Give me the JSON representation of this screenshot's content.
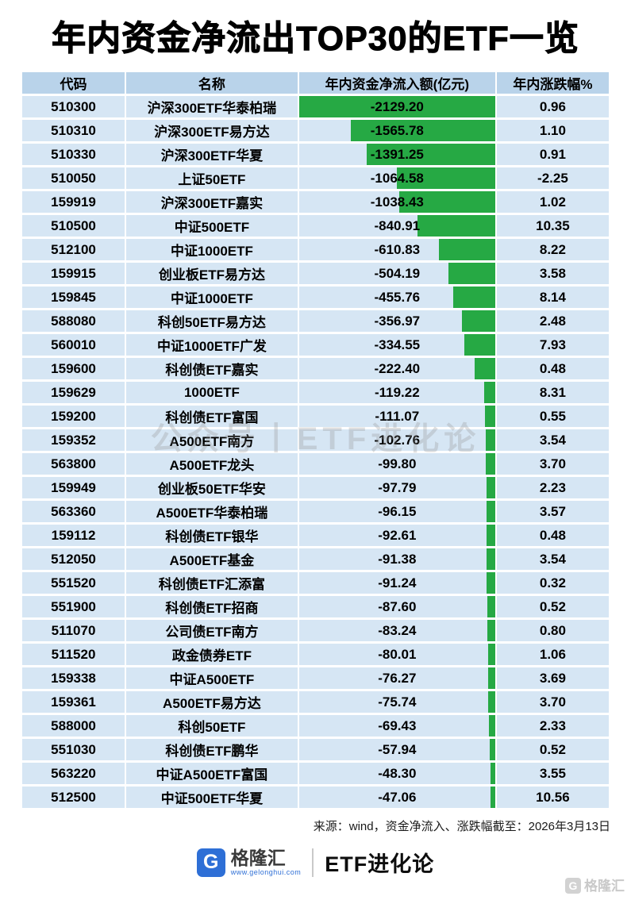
{
  "title": "年内资金净流出TOP30的ETF一览",
  "watermark": "公众号丨ETF进化论",
  "chart_data": {
    "type": "table",
    "title": "年内资金净流出TOP30的ETF一览",
    "columns": [
      "代码",
      "名称",
      "年内资金净流入额(亿元)",
      "年内涨跌幅%"
    ],
    "bar": {
      "column": "年内资金净流入额(亿元)",
      "color": "#26a944",
      "anchor": "right",
      "max_abs": 2129.2
    },
    "rows": [
      {
        "code": "510300",
        "name": "沪深300ETF华泰柏瑞",
        "net_flow": -2129.2,
        "ytd_change": 0.96
      },
      {
        "code": "510310",
        "name": "沪深300ETF易方达",
        "net_flow": -1565.78,
        "ytd_change": 1.1
      },
      {
        "code": "510330",
        "name": "沪深300ETF华夏",
        "net_flow": -1391.25,
        "ytd_change": 0.91
      },
      {
        "code": "510050",
        "name": "上证50ETF",
        "net_flow": -1064.58,
        "ytd_change": -2.25
      },
      {
        "code": "159919",
        "name": "沪深300ETF嘉实",
        "net_flow": -1038.43,
        "ytd_change": 1.02
      },
      {
        "code": "510500",
        "name": "中证500ETF",
        "net_flow": -840.91,
        "ytd_change": 10.35
      },
      {
        "code": "512100",
        "name": "中证1000ETF",
        "net_flow": -610.83,
        "ytd_change": 8.22
      },
      {
        "code": "159915",
        "name": "创业板ETF易方达",
        "net_flow": -504.19,
        "ytd_change": 3.58
      },
      {
        "code": "159845",
        "name": "中证1000ETF",
        "net_flow": -455.76,
        "ytd_change": 8.14
      },
      {
        "code": "588080",
        "name": "科创50ETF易方达",
        "net_flow": -356.97,
        "ytd_change": 2.48
      },
      {
        "code": "560010",
        "name": "中证1000ETF广发",
        "net_flow": -334.55,
        "ytd_change": 7.93
      },
      {
        "code": "159600",
        "name": "科创债ETF嘉实",
        "net_flow": -222.4,
        "ytd_change": 0.48
      },
      {
        "code": "159629",
        "name": "1000ETF",
        "net_flow": -119.22,
        "ytd_change": 8.31
      },
      {
        "code": "159200",
        "name": "科创债ETF富国",
        "net_flow": -111.07,
        "ytd_change": 0.55
      },
      {
        "code": "159352",
        "name": "A500ETF南方",
        "net_flow": -102.76,
        "ytd_change": 3.54
      },
      {
        "code": "563800",
        "name": "A500ETF龙头",
        "net_flow": -99.8,
        "ytd_change": 3.7
      },
      {
        "code": "159949",
        "name": "创业板50ETF华安",
        "net_flow": -97.79,
        "ytd_change": 2.23
      },
      {
        "code": "563360",
        "name": "A500ETF华泰柏瑞",
        "net_flow": -96.15,
        "ytd_change": 3.57
      },
      {
        "code": "159112",
        "name": "科创债ETF银华",
        "net_flow": -92.61,
        "ytd_change": 0.48
      },
      {
        "code": "512050",
        "name": "A500ETF基金",
        "net_flow": -91.38,
        "ytd_change": 3.54
      },
      {
        "code": "551520",
        "name": "科创债ETF汇添富",
        "net_flow": -91.24,
        "ytd_change": 0.32
      },
      {
        "code": "551900",
        "name": "科创债ETF招商",
        "net_flow": -87.6,
        "ytd_change": 0.52
      },
      {
        "code": "511070",
        "name": "公司债ETF南方",
        "net_flow": -83.24,
        "ytd_change": 0.8
      },
      {
        "code": "511520",
        "name": "政金债券ETF",
        "net_flow": -80.01,
        "ytd_change": 1.06
      },
      {
        "code": "159338",
        "name": "中证A500ETF",
        "net_flow": -76.27,
        "ytd_change": 3.69
      },
      {
        "code": "159361",
        "name": "A500ETF易方达",
        "net_flow": -75.74,
        "ytd_change": 3.7
      },
      {
        "code": "588000",
        "name": "科创50ETF",
        "net_flow": -69.43,
        "ytd_change": 2.33
      },
      {
        "code": "551030",
        "name": "科创债ETF鹏华",
        "net_flow": -57.94,
        "ytd_change": 0.52
      },
      {
        "code": "563220",
        "name": "中证A500ETF富国",
        "net_flow": -48.3,
        "ytd_change": 3.55
      },
      {
        "code": "512500",
        "name": "中证500ETF华夏",
        "net_flow": -47.06,
        "ytd_change": 10.56
      }
    ]
  },
  "footer": {
    "source": "来源：wind，资金净流入、涨跌幅截至：2026年3月13日"
  },
  "branding": {
    "logo_letter": "G",
    "brand_name": "格隆汇",
    "brand_url": "www.gelonghui.com",
    "series_name": "ETF进化论",
    "corner_logo_letter": "G",
    "corner_brand": "格隆汇"
  }
}
